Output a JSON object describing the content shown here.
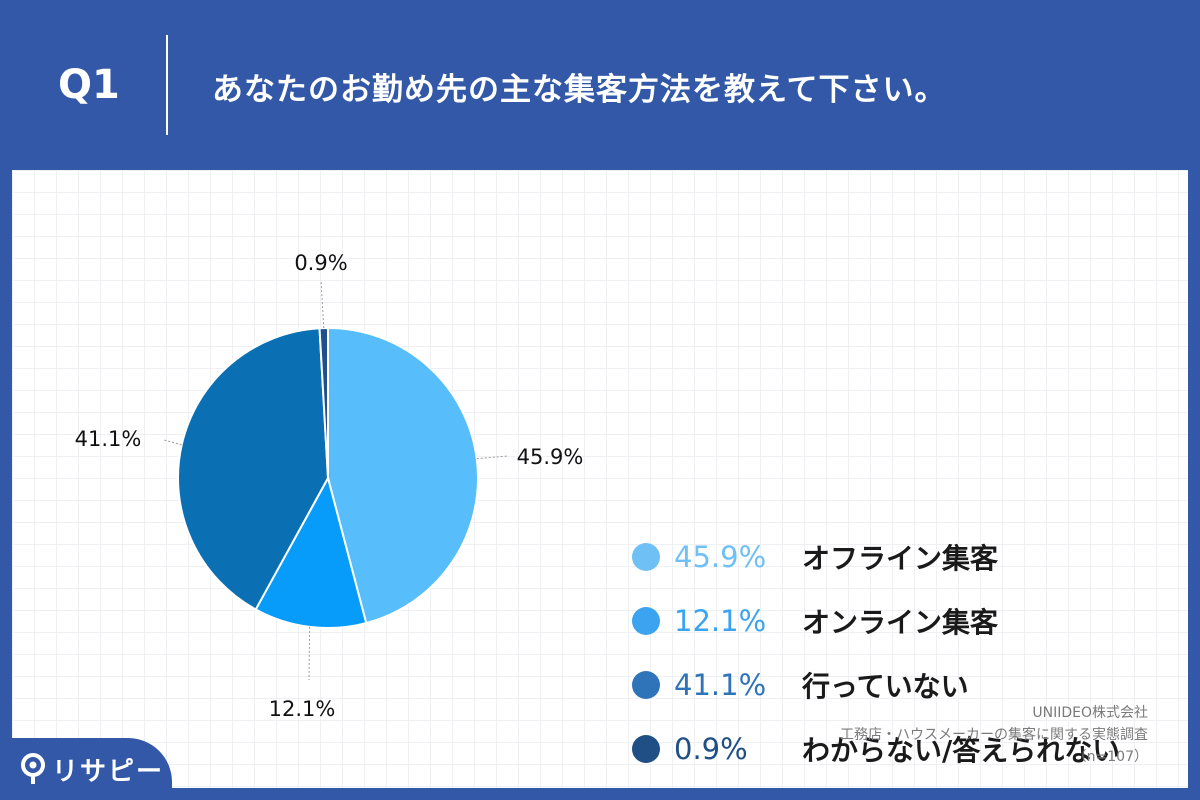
{
  "header": {
    "q_label": "Q1",
    "question": "あなたのお勤め先の主な集客方法を教えて下さい。"
  },
  "chart_data": {
    "type": "pie",
    "title": "",
    "slices": [
      {
        "label": "オフライン集客",
        "value": 45.9,
        "display": "45.9%",
        "color": "#58bdfb",
        "legend_color": "#6ec0f5",
        "label_side": "right"
      },
      {
        "label": "オンライン集客",
        "value": 12.1,
        "display": "12.1%",
        "color": "#089cfa",
        "legend_color": "#3ba3ef",
        "label_side": "bottom"
      },
      {
        "label": "行っていない",
        "value": 41.1,
        "display": "41.1%",
        "color": "#0b70b3",
        "legend_color": "#2f74b8",
        "label_side": "left"
      },
      {
        "label": "わからない/答えられない",
        "value": 0.9,
        "display": "0.9%",
        "color": "#1f4f8c",
        "legend_color": "#1f4f85",
        "label_side": "top"
      }
    ],
    "legend_placement": "right",
    "grid": true
  },
  "source": {
    "company": "UNIIDEO株式会社",
    "survey": "工務店・ハウスメーカーの集客に関する実態調査",
    "n": "（n=107）"
  },
  "logo": {
    "text": "リサピー"
  },
  "colors": {
    "background": "#3358a8",
    "panel": "#ffffff",
    "grid": "#eef0f4"
  }
}
